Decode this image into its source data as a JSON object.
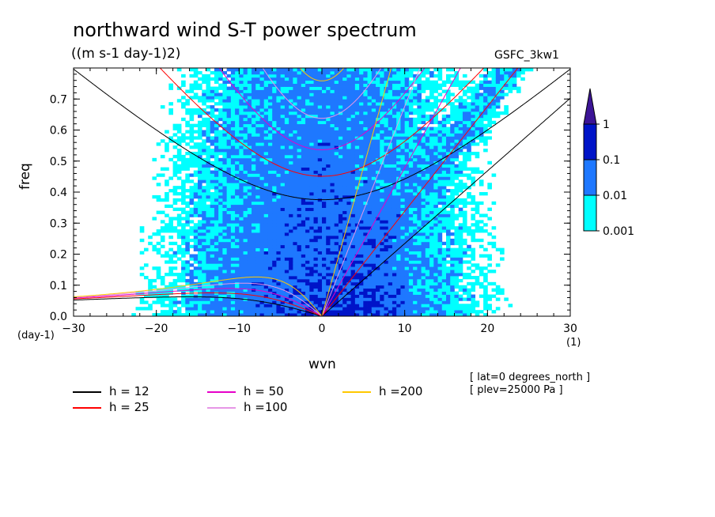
{
  "chart_data": {
    "type": "heatmap",
    "title": "northward wind S-T power spectrum",
    "units": "((m s-1 day-1)2)",
    "dataset": "GSFC_3kw1",
    "xlabel": "wvn",
    "xunit": "(1)",
    "ylabel": "freq",
    "yunit": "(day-1)",
    "xlim": [
      -30,
      30
    ],
    "ylim": [
      0,
      0.8
    ],
    "xticks": [
      -30,
      -20,
      -10,
      0,
      10,
      20,
      30
    ],
    "yticks": [
      0.0,
      0.1,
      0.2,
      0.3,
      0.4,
      0.5,
      0.6,
      0.7
    ],
    "ytick_labels": [
      "0.0",
      "0.1",
      "0.2",
      "0.3",
      "0.4",
      "0.5",
      "0.6",
      "0.7"
    ],
    "grid": false,
    "colorbar": {
      "levels": [
        "0.001",
        "0.01",
        "0.1",
        "1"
      ],
      "colors": [
        "#00ffff",
        "#1e78ff",
        "#0014c8",
        "#3c1496"
      ]
    },
    "dispersion_curves": [
      {
        "label": "h = 12",
        "color": "#000000"
      },
      {
        "label": "h = 25",
        "color": "#ff0000"
      },
      {
        "label": "h = 50",
        "color": "#e600c8"
      },
      {
        "label": "h =100",
        "color": "#e696e6"
      },
      {
        "label": "h =200",
        "color": "#ffc800"
      }
    ],
    "info": [
      "[ lat=0 degrees_north ]",
      "[ plev=25000 Pa ]"
    ]
  }
}
